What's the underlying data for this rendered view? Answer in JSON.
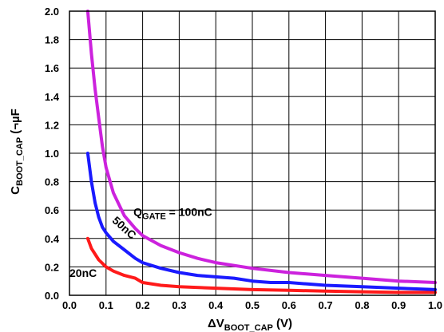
{
  "chart_data": {
    "type": "line",
    "xlim": [
      0,
      1
    ],
    "ylim": [
      0,
      2
    ],
    "x_ticks": [
      "0.0",
      "0.1",
      "0.2",
      "0.3",
      "0.4",
      "0.5",
      "0.6",
      "0.7",
      "0.8",
      "0.9",
      "1.0"
    ],
    "y_ticks": [
      "0.0",
      "0.2",
      "0.4",
      "0.6",
      "0.8",
      "1.0",
      "1.2",
      "1.4",
      "1.6",
      "1.8",
      "2.0"
    ],
    "xlabel": {
      "prefix": "ΔV",
      "sub": "BOOT_CAP",
      "suffix": " (V)"
    },
    "ylabel": {
      "prefix": "C",
      "sub": "BOOT_CAP",
      "suffix": " (¬µF"
    },
    "grid": true,
    "series": [
      {
        "label": {
          "text": "20nC",
          "sub": "",
          "suffix": ""
        },
        "color": "#ff1a1a",
        "x": [
          0.05,
          0.06,
          0.08,
          0.1,
          0.12,
          0.15,
          0.18,
          0.2,
          0.25,
          0.3,
          0.4,
          0.5,
          0.6,
          0.7,
          0.8,
          0.9,
          1.0
        ],
        "y": [
          0.4,
          0.33,
          0.25,
          0.2,
          0.17,
          0.14,
          0.12,
          0.09,
          0.07,
          0.06,
          0.05,
          0.04,
          0.035,
          0.03,
          0.025,
          0.02,
          0.02
        ]
      },
      {
        "label": {
          "text": "50nC",
          "sub": "",
          "suffix": ""
        },
        "color": "#1a1aff",
        "x": [
          0.05,
          0.06,
          0.07,
          0.08,
          0.09,
          0.1,
          0.12,
          0.15,
          0.18,
          0.2,
          0.25,
          0.3,
          0.35,
          0.4,
          0.45,
          0.5,
          0.55,
          0.6,
          0.65,
          0.7,
          0.8,
          0.9,
          1.0
        ],
        "y": [
          1.0,
          0.8,
          0.65,
          0.55,
          0.48,
          0.44,
          0.38,
          0.32,
          0.26,
          0.23,
          0.19,
          0.16,
          0.14,
          0.13,
          0.12,
          0.1,
          0.09,
          0.09,
          0.08,
          0.07,
          0.06,
          0.05,
          0.04
        ]
      },
      {
        "label": {
          "text": "Q",
          "sub": "GATE",
          "suffix": " = 100nC"
        },
        "color": "#cc22dd",
        "x": [
          0.05,
          0.06,
          0.07,
          0.08,
          0.09,
          0.1,
          0.12,
          0.15,
          0.18,
          0.2,
          0.25,
          0.3,
          0.35,
          0.4,
          0.5,
          0.6,
          0.7,
          0.8,
          0.9,
          1.0
        ],
        "y": [
          2.0,
          1.7,
          1.45,
          1.25,
          1.05,
          0.9,
          0.72,
          0.56,
          0.47,
          0.42,
          0.35,
          0.3,
          0.26,
          0.23,
          0.19,
          0.16,
          0.14,
          0.12,
          0.1,
          0.09
        ]
      }
    ]
  }
}
